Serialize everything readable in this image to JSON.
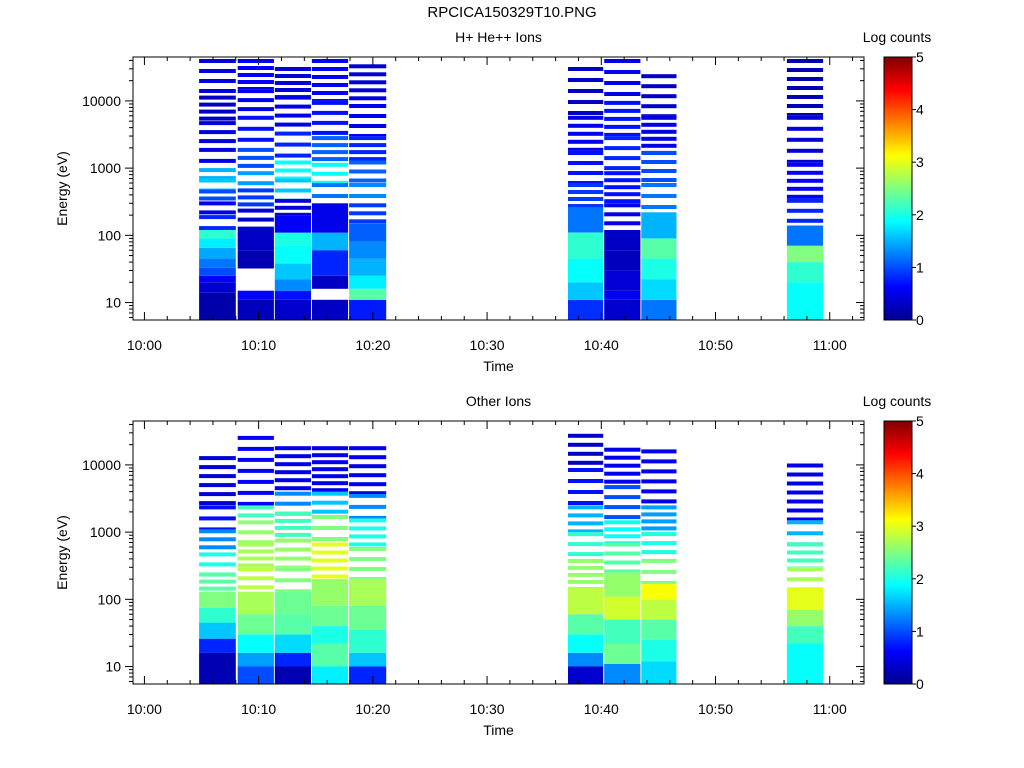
{
  "page_title": "RPCICA150329T10.PNG",
  "colors": {
    "background": "#ffffff",
    "colormap": "jet",
    "axis": "#000000"
  },
  "chart_data": [
    {
      "type": "heatmap",
      "title": "H+ He++ Ions",
      "xlabel": "Time",
      "ylabel": "Energy (eV)",
      "y_scale": "log",
      "xlim": [
        "09:59",
        "11:03"
      ],
      "ylim": [
        5.5,
        45000
      ],
      "x_ticks": [
        "10:00",
        "10:10",
        "10:20",
        "10:30",
        "10:40",
        "10:50",
        "11:00"
      ],
      "y_ticks": [
        "10",
        "100",
        "1000",
        "10000"
      ],
      "colorbar": {
        "label": "Log counts",
        "min": 0,
        "max": 5,
        "ticks": [
          "0",
          "1",
          "2",
          "3",
          "4",
          "5"
        ]
      },
      "columns": [
        {
          "start": "10:04:47",
          "end": "10:08:00",
          "top_energy": 42000,
          "bands": [
            [
              5.5,
              14,
              0.15
            ],
            [
              14,
              20,
              0.35
            ],
            [
              20,
              25,
              0.6
            ],
            [
              25,
              33,
              1.0
            ],
            [
              33,
              45,
              1.2
            ],
            [
              45,
              65,
              1.45
            ],
            [
              65,
              90,
              1.8
            ],
            [
              90,
              120,
              2.1
            ],
            [
              120,
              200,
              0.8
            ],
            [
              200,
              320,
              0.5
            ],
            [
              320,
              480,
              1.0
            ],
            [
              480,
              700,
              1.6
            ],
            [
              700,
              1000,
              1.5
            ],
            [
              1000,
              2000,
              0.5
            ],
            [
              2000,
              5000,
              0.4
            ],
            [
              5000,
              12000,
              0.3
            ],
            [
              12000,
              42000,
              0.45
            ]
          ]
        },
        {
          "start": "10:08:10",
          "end": "10:11:20",
          "top_energy": 42000,
          "bands": [
            [
              5.5,
              11,
              0.25
            ],
            [
              11,
              15,
              0.6
            ],
            [
              15,
              32,
              -1
            ],
            [
              32,
              60,
              0.2
            ],
            [
              60,
              120,
              0.3
            ],
            [
              120,
              250,
              0.4
            ],
            [
              250,
              500,
              0.9
            ],
            [
              500,
              900,
              1.4
            ],
            [
              900,
              2000,
              1.0
            ],
            [
              2000,
              6000,
              0.7
            ],
            [
              6000,
              15000,
              0.5
            ],
            [
              15000,
              42000,
              0.6
            ]
          ]
        },
        {
          "start": "10:11:25",
          "end": "10:14:35",
          "top_energy": 32000,
          "bands": [
            [
              5.5,
              11,
              0.35
            ],
            [
              11,
              15,
              0.7
            ],
            [
              15,
              22,
              1.3
            ],
            [
              22,
              38,
              1.6
            ],
            [
              38,
              70,
              1.9
            ],
            [
              70,
              110,
              2.0
            ],
            [
              110,
              200,
              0.6
            ],
            [
              200,
              350,
              0.4
            ],
            [
              350,
              700,
              1.6
            ],
            [
              700,
              1300,
              1.9
            ],
            [
              1300,
              3500,
              0.8
            ],
            [
              3500,
              12000,
              0.5
            ],
            [
              12000,
              32000,
              0.4
            ]
          ]
        },
        {
          "start": "10:14:40",
          "end": "10:17:50",
          "top_energy": 42000,
          "bands": [
            [
              5.5,
              11,
              0.3
            ],
            [
              11,
              16,
              -1
            ],
            [
              16,
              25,
              0.3
            ],
            [
              25,
              60,
              0.8
            ],
            [
              60,
              110,
              1.5
            ],
            [
              110,
              300,
              0.5
            ],
            [
              300,
              600,
              1.2
            ],
            [
              600,
              1200,
              1.9
            ],
            [
              1200,
              3000,
              1.1
            ],
            [
              3000,
              10000,
              0.7
            ],
            [
              10000,
              42000,
              0.6
            ]
          ]
        },
        {
          "start": "10:17:55",
          "end": "10:21:10",
          "top_energy": 35000,
          "bands": [
            [
              5.5,
              11,
              0.75
            ],
            [
              11,
              16,
              2.3
            ],
            [
              16,
              25,
              1.8
            ],
            [
              25,
              45,
              1.5
            ],
            [
              45,
              80,
              1.3
            ],
            [
              80,
              150,
              1.1
            ],
            [
              150,
              300,
              0.9
            ],
            [
              300,
              600,
              1.3
            ],
            [
              600,
              1300,
              1.1
            ],
            [
              1300,
              3000,
              0.8
            ],
            [
              3000,
              9000,
              0.5
            ],
            [
              9000,
              35000,
              0.4
            ]
          ]
        },
        {
          "start": "10:37:05",
          "end": "10:40:10",
          "top_energy": 32000,
          "bands": [
            [
              5.5,
              11,
              0.85
            ],
            [
              11,
              20,
              1.6
            ],
            [
              20,
              45,
              1.9
            ],
            [
              45,
              110,
              2.1
            ],
            [
              110,
              260,
              1.2
            ],
            [
              260,
              600,
              0.9
            ],
            [
              600,
              1800,
              0.7
            ],
            [
              1800,
              6000,
              0.5
            ],
            [
              6000,
              32000,
              0.3
            ]
          ]
        },
        {
          "start": "10:40:15",
          "end": "10:43:25",
          "top_energy": 42000,
          "bands": [
            [
              5.5,
              11,
              0.35
            ],
            [
              11,
              15,
              0.55
            ],
            [
              15,
              30,
              0.4
            ],
            [
              30,
              60,
              0.25
            ],
            [
              60,
              120,
              0.3
            ],
            [
              120,
              300,
              0.5
            ],
            [
              300,
              900,
              0.7
            ],
            [
              900,
              3000,
              0.8
            ],
            [
              3000,
              10000,
              0.7
            ],
            [
              10000,
              42000,
              0.5
            ]
          ]
        },
        {
          "start": "10:43:30",
          "end": "10:46:35",
          "top_energy": 25000,
          "bands": [
            [
              5.5,
              11,
              1.2
            ],
            [
              11,
              22,
              1.7
            ],
            [
              22,
              45,
              2.0
            ],
            [
              45,
              90,
              2.3
            ],
            [
              90,
              220,
              1.5
            ],
            [
              220,
              600,
              1.2
            ],
            [
              600,
              1800,
              1.0
            ],
            [
              1800,
              6000,
              0.5
            ],
            [
              6000,
              25000,
              0.3
            ]
          ]
        },
        {
          "start": "10:56:15",
          "end": "10:59:25",
          "top_energy": 42000,
          "bands": [
            [
              5.5,
              20,
              1.9
            ],
            [
              20,
              40,
              2.1
            ],
            [
              40,
              70,
              2.5
            ],
            [
              70,
              140,
              1.2
            ],
            [
              140,
              350,
              0.8
            ],
            [
              350,
              1200,
              0.6
            ],
            [
              1200,
              6000,
              0.4
            ],
            [
              6000,
              42000,
              0.2
            ]
          ]
        }
      ]
    },
    {
      "type": "heatmap",
      "title": "Other Ions",
      "xlabel": "Time",
      "ylabel": "Energy (eV)",
      "y_scale": "log",
      "xlim": [
        "09:59",
        "11:03"
      ],
      "ylim": [
        5.5,
        45000
      ],
      "x_ticks": [
        "10:00",
        "10:10",
        "10:20",
        "10:30",
        "10:40",
        "10:50",
        "11:00"
      ],
      "y_ticks": [
        "10",
        "100",
        "1000",
        "10000"
      ],
      "colorbar": {
        "label": "Log counts",
        "min": 0,
        "max": 5,
        "ticks": [
          "0",
          "1",
          "2",
          "3",
          "4",
          "5"
        ]
      },
      "columns": [
        {
          "start": "10:04:47",
          "end": "10:08:00",
          "top_energy": 13500,
          "bands": [
            [
              5.5,
              16,
              0.2
            ],
            [
              16,
              26,
              0.8
            ],
            [
              26,
              45,
              1.6
            ],
            [
              45,
              75,
              2.1
            ],
            [
              75,
              130,
              2.5
            ],
            [
              130,
              250,
              2.3
            ],
            [
              250,
              500,
              2.0
            ],
            [
              500,
              1100,
              1.3
            ],
            [
              1100,
              2500,
              0.7
            ],
            [
              2500,
              13500,
              0.4
            ]
          ]
        },
        {
          "start": "10:08:10",
          "end": "10:11:20",
          "top_energy": 27000,
          "bands": [
            [
              5.5,
              10,
              1.0
            ],
            [
              10,
              16,
              1.4
            ],
            [
              16,
              30,
              1.9
            ],
            [
              30,
              60,
              2.4
            ],
            [
              60,
              130,
              2.7
            ],
            [
              130,
              300,
              2.8
            ],
            [
              300,
              700,
              2.7
            ],
            [
              700,
              1500,
              2.6
            ],
            [
              1500,
              2500,
              2.2
            ],
            [
              2500,
              27000,
              0.6
            ]
          ]
        },
        {
          "start": "10:11:25",
          "end": "10:14:35",
          "top_energy": 19000,
          "bands": [
            [
              5.5,
              10,
              0.2
            ],
            [
              10,
              16,
              0.8
            ],
            [
              16,
              30,
              1.7
            ],
            [
              30,
              60,
              2.3
            ],
            [
              60,
              130,
              2.4
            ],
            [
              130,
              300,
              2.5
            ],
            [
              300,
              800,
              2.6
            ],
            [
              800,
              2000,
              2.2
            ],
            [
              2000,
              4000,
              1.3
            ],
            [
              4000,
              19000,
              0.5
            ]
          ]
        },
        {
          "start": "10:14:40",
          "end": "10:17:50",
          "top_energy": 19000,
          "bands": [
            [
              5.5,
              10,
              1.8
            ],
            [
              10,
              22,
              2.3
            ],
            [
              22,
              40,
              2.0
            ],
            [
              40,
              80,
              2.4
            ],
            [
              80,
              200,
              2.6
            ],
            [
              200,
              700,
              3.0
            ],
            [
              700,
              1800,
              2.5
            ],
            [
              1800,
              4000,
              1.6
            ],
            [
              4000,
              19000,
              0.5
            ]
          ]
        },
        {
          "start": "10:17:55",
          "end": "10:21:10",
          "top_energy": 19000,
          "bands": [
            [
              5.5,
              10,
              0.8
            ],
            [
              10,
              16,
              1.6
            ],
            [
              16,
              35,
              2.1
            ],
            [
              35,
              80,
              2.4
            ],
            [
              80,
              200,
              2.7
            ],
            [
              200,
              600,
              2.5
            ],
            [
              600,
              1600,
              2.0
            ],
            [
              1600,
              3700,
              1.3
            ],
            [
              3700,
              19000,
              0.5
            ]
          ]
        },
        {
          "start": "10:37:05",
          "end": "10:40:10",
          "top_energy": 29000,
          "bands": [
            [
              5.5,
              10,
              0.35
            ],
            [
              10,
              16,
              1.3
            ],
            [
              16,
              30,
              1.9
            ],
            [
              30,
              60,
              2.3
            ],
            [
              60,
              150,
              2.8
            ],
            [
              150,
              400,
              2.6
            ],
            [
              400,
              1000,
              2.1
            ],
            [
              1000,
              2500,
              1.5
            ],
            [
              2500,
              9000,
              0.7
            ],
            [
              9000,
              29000,
              0.3
            ]
          ]
        },
        {
          "start": "10:40:15",
          "end": "10:43:25",
          "top_energy": 18000,
          "bands": [
            [
              5.5,
              11,
              1.3
            ],
            [
              11,
              22,
              2.4
            ],
            [
              22,
              50,
              2.2
            ],
            [
              50,
              110,
              2.9
            ],
            [
              110,
              250,
              2.6
            ],
            [
              250,
              700,
              2.3
            ],
            [
              700,
              1500,
              1.9
            ],
            [
              1500,
              5000,
              1.0
            ],
            [
              5000,
              18000,
              0.5
            ]
          ]
        },
        {
          "start": "10:43:30",
          "end": "10:46:35",
          "top_energy": 17000,
          "bands": [
            [
              5.5,
              12,
              1.7
            ],
            [
              12,
              25,
              2.0
            ],
            [
              25,
              50,
              2.3
            ],
            [
              50,
              100,
              2.8
            ],
            [
              100,
              170,
              3.1
            ],
            [
              170,
              400,
              2.5
            ],
            [
              400,
              1000,
              2.0
            ],
            [
              1000,
              2500,
              1.4
            ],
            [
              2500,
              17000,
              0.5
            ]
          ]
        },
        {
          "start": "10:56:15",
          "end": "10:59:25",
          "top_energy": 10500,
          "bands": [
            [
              5.5,
              22,
              1.9
            ],
            [
              22,
              40,
              2.2
            ],
            [
              40,
              70,
              2.6
            ],
            [
              70,
              150,
              3.0
            ],
            [
              150,
              300,
              2.7
            ],
            [
              300,
              700,
              2.2
            ],
            [
              700,
              1500,
              1.5
            ],
            [
              1500,
              10500,
              0.5
            ]
          ]
        }
      ]
    }
  ]
}
